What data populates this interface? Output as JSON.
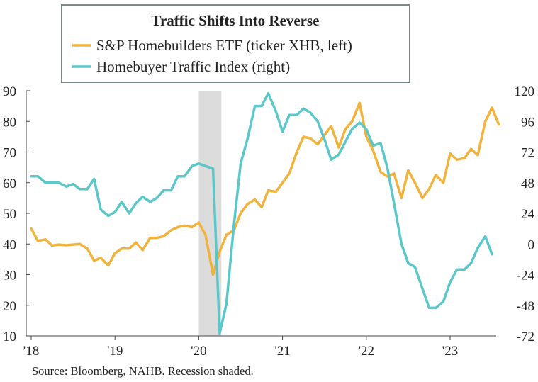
{
  "chart_data": {
    "type": "line",
    "title": "Traffic Shifts Into Reverse",
    "source": "Source: Bloomberg, NAHB. Recession shaded.",
    "x_tick_labels": [
      "'18",
      "'19",
      "'20",
      "'21",
      "'22",
      "'23"
    ],
    "x_tick_years": [
      2018,
      2019,
      2020,
      2021,
      2022,
      2023
    ],
    "x_range": [
      2018,
      2023.6
    ],
    "left_axis": {
      "range": [
        10,
        90
      ],
      "ticks": [
        10,
        20,
        30,
        40,
        50,
        60,
        70,
        80,
        90
      ]
    },
    "right_axis": {
      "range": [
        -72,
        120
      ],
      "ticks": [
        -72,
        -48,
        -24,
        0,
        24,
        48,
        72,
        96,
        120
      ]
    },
    "recession": {
      "start": 2020.0,
      "end": 2020.27
    },
    "grid": false,
    "legend_position": "top-left",
    "series": [
      {
        "name": "S&P Homebuilders ETF (ticker XHB, left)",
        "axis": "left",
        "color": "#F2B33D",
        "points": [
          [
            2018.0,
            45.0
          ],
          [
            2018.08,
            41.0
          ],
          [
            2018.17,
            41.5
          ],
          [
            2018.25,
            39.5
          ],
          [
            2018.33,
            39.8
          ],
          [
            2018.42,
            39.6
          ],
          [
            2018.5,
            39.8
          ],
          [
            2018.58,
            40.0
          ],
          [
            2018.67,
            38.5
          ],
          [
            2018.75,
            34.5
          ],
          [
            2018.83,
            35.5
          ],
          [
            2018.92,
            33.0
          ],
          [
            2019.0,
            37.0
          ],
          [
            2019.08,
            38.5
          ],
          [
            2019.17,
            38.5
          ],
          [
            2019.25,
            40.5
          ],
          [
            2019.33,
            38.0
          ],
          [
            2019.42,
            42.0
          ],
          [
            2019.5,
            42.0
          ],
          [
            2019.58,
            42.5
          ],
          [
            2019.67,
            44.5
          ],
          [
            2019.75,
            45.5
          ],
          [
            2019.83,
            46.0
          ],
          [
            2019.92,
            45.5
          ],
          [
            2020.0,
            47.0
          ],
          [
            2020.08,
            43.0
          ],
          [
            2020.17,
            30.0
          ],
          [
            2020.25,
            37.5
          ],
          [
            2020.33,
            43.0
          ],
          [
            2020.42,
            44.5
          ],
          [
            2020.5,
            50.0
          ],
          [
            2020.58,
            53.0
          ],
          [
            2020.67,
            54.5
          ],
          [
            2020.75,
            52.0
          ],
          [
            2020.83,
            57.5
          ],
          [
            2020.92,
            57.0
          ],
          [
            2021.0,
            60.0
          ],
          [
            2021.08,
            63.0
          ],
          [
            2021.17,
            70.0
          ],
          [
            2021.25,
            75.0
          ],
          [
            2021.33,
            74.5
          ],
          [
            2021.42,
            72.5
          ],
          [
            2021.5,
            75.5
          ],
          [
            2021.58,
            78.5
          ],
          [
            2021.67,
            71.5
          ],
          [
            2021.75,
            77.5
          ],
          [
            2021.83,
            80.0
          ],
          [
            2021.92,
            86.0
          ],
          [
            2022.0,
            75.0
          ],
          [
            2022.08,
            70.5
          ],
          [
            2022.17,
            63.5
          ],
          [
            2022.25,
            62.0
          ],
          [
            2022.33,
            63.0
          ],
          [
            2022.42,
            55.0
          ],
          [
            2022.5,
            64.0
          ],
          [
            2022.58,
            60.0
          ],
          [
            2022.67,
            55.0
          ],
          [
            2022.75,
            58.0
          ],
          [
            2022.83,
            62.5
          ],
          [
            2022.92,
            60.0
          ],
          [
            2023.0,
            69.5
          ],
          [
            2023.08,
            67.5
          ],
          [
            2023.17,
            68.0
          ],
          [
            2023.25,
            71.0
          ],
          [
            2023.33,
            69.0
          ],
          [
            2023.42,
            80.0
          ],
          [
            2023.5,
            84.5
          ],
          [
            2023.58,
            79.0
          ]
        ]
      },
      {
        "name": "Homebuyer Traffic Index (right)",
        "axis": "right",
        "color": "#5BC7C9",
        "points": [
          [
            2018.0,
            53
          ],
          [
            2018.08,
            53
          ],
          [
            2018.17,
            48
          ],
          [
            2018.25,
            48
          ],
          [
            2018.33,
            48
          ],
          [
            2018.42,
            45
          ],
          [
            2018.5,
            47
          ],
          [
            2018.58,
            43
          ],
          [
            2018.67,
            43
          ],
          [
            2018.75,
            51
          ],
          [
            2018.83,
            27
          ],
          [
            2018.92,
            22
          ],
          [
            2019.0,
            25
          ],
          [
            2019.08,
            33
          ],
          [
            2019.17,
            24
          ],
          [
            2019.25,
            32
          ],
          [
            2019.33,
            37
          ],
          [
            2019.42,
            33
          ],
          [
            2019.5,
            36
          ],
          [
            2019.58,
            42
          ],
          [
            2019.67,
            42
          ],
          [
            2019.75,
            53
          ],
          [
            2019.83,
            53
          ],
          [
            2019.92,
            61
          ],
          [
            2020.0,
            63
          ],
          [
            2020.08,
            61
          ],
          [
            2020.17,
            59
          ],
          [
            2020.25,
            -70
          ],
          [
            2020.33,
            -47
          ],
          [
            2020.42,
            15
          ],
          [
            2020.5,
            63
          ],
          [
            2020.58,
            82
          ],
          [
            2020.67,
            108
          ],
          [
            2020.75,
            108
          ],
          [
            2020.83,
            118
          ],
          [
            2020.92,
            104
          ],
          [
            2021.0,
            88
          ],
          [
            2021.08,
            101
          ],
          [
            2021.17,
            101
          ],
          [
            2021.25,
            106
          ],
          [
            2021.33,
            103
          ],
          [
            2021.42,
            96
          ],
          [
            2021.5,
            82
          ],
          [
            2021.58,
            66
          ],
          [
            2021.67,
            70
          ],
          [
            2021.75,
            80
          ],
          [
            2021.83,
            90
          ],
          [
            2021.92,
            95
          ],
          [
            2022.0,
            90
          ],
          [
            2022.08,
            77
          ],
          [
            2022.17,
            79
          ],
          [
            2022.25,
            60
          ],
          [
            2022.33,
            32
          ],
          [
            2022.42,
            0
          ],
          [
            2022.5,
            -15
          ],
          [
            2022.58,
            -18
          ],
          [
            2022.67,
            -35
          ],
          [
            2022.75,
            -50
          ],
          [
            2022.83,
            -50
          ],
          [
            2022.92,
            -45
          ],
          [
            2023.0,
            -30
          ],
          [
            2023.08,
            -20
          ],
          [
            2023.17,
            -20
          ],
          [
            2023.25,
            -15
          ],
          [
            2023.33,
            -3
          ],
          [
            2023.42,
            6
          ],
          [
            2023.5,
            -8
          ]
        ]
      }
    ]
  }
}
